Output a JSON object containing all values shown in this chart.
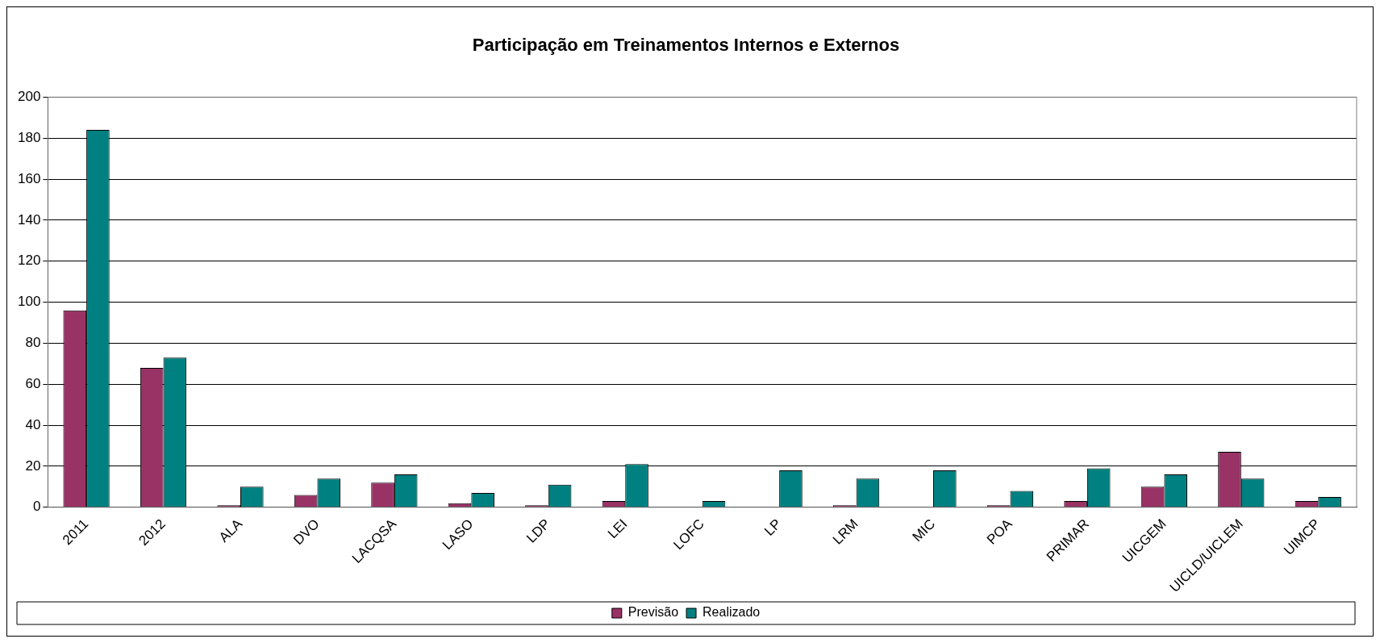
{
  "chart_data": {
    "type": "bar",
    "title": "Participação em Treinamentos Internos e Externos",
    "categories": [
      "2011",
      "2012",
      "ALA",
      "DVO",
      "LACQSA",
      "LASO",
      "LDP",
      "LEI",
      "LOFC",
      "LP",
      "LRM",
      "MIC",
      "POA",
      "PRIMAR",
      "UICGEM",
      "UICLD/UICLEM",
      "UIMCP"
    ],
    "series": [
      {
        "name": "Previsão",
        "color": "#993366",
        "values": [
          96,
          68,
          1,
          6,
          12,
          2,
          1,
          3,
          0,
          0,
          1,
          0,
          1,
          3,
          10,
          27,
          3
        ]
      },
      {
        "name": "Realizado",
        "color": "#008080",
        "values": [
          184,
          73,
          10,
          14,
          16,
          7,
          11,
          21,
          3,
          18,
          14,
          18,
          8,
          19,
          16,
          14,
          5
        ]
      }
    ],
    "ylim": [
      0,
      200
    ],
    "yticks": [
      0,
      20,
      40,
      60,
      80,
      100,
      120,
      140,
      160,
      180,
      200
    ],
    "grid": "y",
    "legend": "bottom"
  }
}
